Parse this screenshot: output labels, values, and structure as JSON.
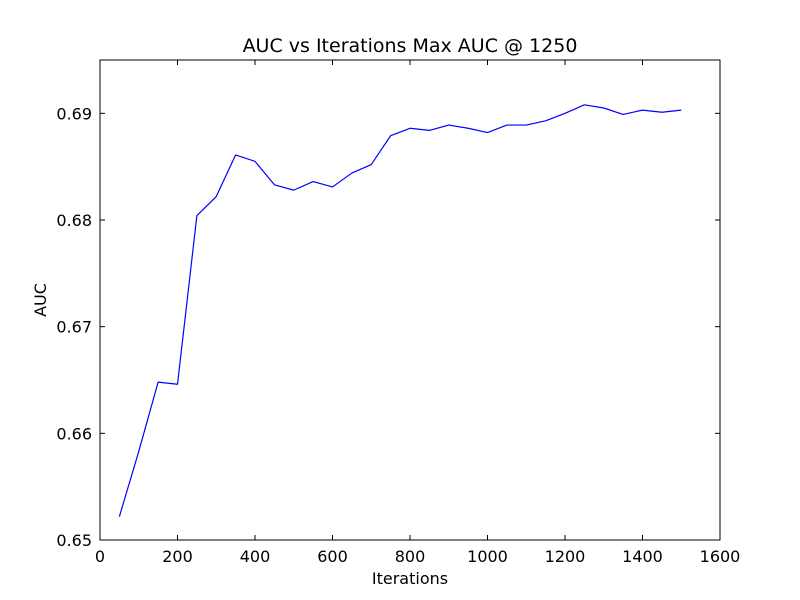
{
  "chart_data": {
    "type": "line",
    "title": "AUC vs Iterations Max AUC @ 1250",
    "xlabel": "Iterations",
    "ylabel": "AUC",
    "xlim": [
      0,
      1600
    ],
    "ylim": [
      0.65,
      0.695
    ],
    "x_ticks": [
      "0",
      "200",
      "400",
      "600",
      "800",
      "1000",
      "1200",
      "1400",
      "1600"
    ],
    "y_ticks": [
      "0.65",
      "0.66",
      "0.67",
      "0.68",
      "0.69"
    ],
    "grid": false,
    "legend": "none",
    "line_color": "#0000ff",
    "series": [
      {
        "x": [
          50,
          100,
          150,
          200,
          250,
          300,
          350,
          400,
          450,
          500,
          550,
          600,
          650,
          700,
          750,
          800,
          850,
          900,
          950,
          1000,
          1050,
          1100,
          1150,
          1200,
          1250,
          1300,
          1350,
          1400,
          1450,
          1500
        ],
        "values": [
          0.6522,
          0.6583,
          0.6648,
          0.6646,
          0.6804,
          0.6822,
          0.6861,
          0.6855,
          0.6833,
          0.6828,
          0.6836,
          0.6831,
          0.6844,
          0.6852,
          0.6879,
          0.6886,
          0.6884,
          0.6889,
          0.6886,
          0.6882,
          0.6889,
          0.6889,
          0.6893,
          0.69,
          0.6908,
          0.6905,
          0.6899,
          0.6903,
          0.6901,
          0.6903
        ]
      }
    ]
  }
}
